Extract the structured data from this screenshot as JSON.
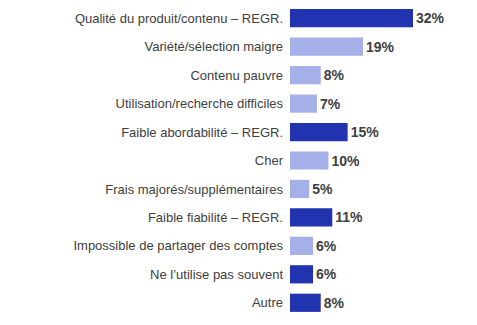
{
  "chart_data": {
    "type": "bar",
    "orientation": "horizontal",
    "categories": [
      "Qualité du produit/contenu – REGR.",
      "Variété/sélection maigre",
      "Contenu pauvre",
      "Utilisation/recherche difficiles",
      "Faible abordabilité – REGR.",
      "Cher",
      "Frais majorés/supplémentaires",
      "Faible fiabilité – REGR.",
      "Impossible de partager des comptes",
      "Ne l’utilise pas souvent",
      "Autre"
    ],
    "values": [
      32,
      19,
      8,
      7,
      15,
      10,
      5,
      11,
      6,
      6,
      8
    ],
    "value_labels": [
      "32%",
      "19%",
      "8%",
      "7%",
      "15%",
      "10%",
      "5%",
      "11%",
      "6%",
      "6%",
      "8%"
    ],
    "colors": [
      "#2233b0",
      "#a5b0e8",
      "#a5b0e8",
      "#a5b0e8",
      "#2233b0",
      "#a5b0e8",
      "#a5b0e8",
      "#2233b0",
      "#a5b0e8",
      "#2233b0",
      "#2233b0"
    ],
    "xlim": [
      0,
      32
    ],
    "xticks": [],
    "grid": false,
    "data_labels": true,
    "tick_labels": "y"
  }
}
